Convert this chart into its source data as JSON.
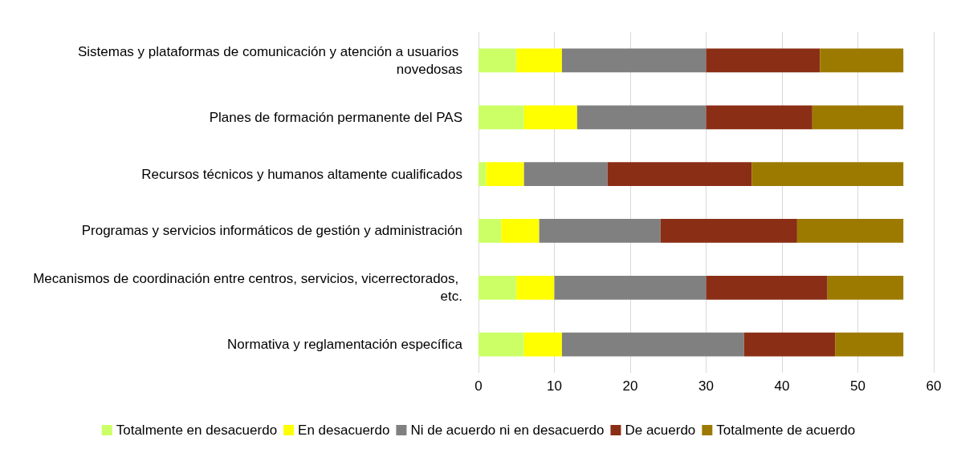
{
  "chart_data": {
    "type": "bar",
    "orientation": "horizontal",
    "stacked": true,
    "categories": [
      "Sistemas y plataformas de comunicación y atención a usuarios novedosas",
      "Planes de formación permanente del PAS",
      "Recursos técnicos y humanos altamente cualificados",
      "Programas y servicios informáticos de gestión y administración",
      "Mecanismos de coordinación entre centros, servicios, vicerrectorados, etc.",
      "Normativa y reglamentación específica"
    ],
    "series": [
      {
        "name": "Totalmente en desacuerdo",
        "color": "#ccff66",
        "values": [
          5,
          6,
          1,
          3,
          5,
          6
        ]
      },
      {
        "name": "En desacuerdo",
        "color": "#ffff00",
        "values": [
          6,
          7,
          5,
          5,
          5,
          5
        ]
      },
      {
        "name": "Ni de acuerdo ni en desacuerdo",
        "color": "#808080",
        "values": [
          19,
          17,
          11,
          16,
          20,
          24
        ]
      },
      {
        "name": "De acuerdo",
        "color": "#8b2e16",
        "values": [
          15,
          14,
          19,
          18,
          16,
          12
        ]
      },
      {
        "name": "Totalmente de acuerdo",
        "color": "#9c7a00",
        "values": [
          11,
          12,
          20,
          14,
          10,
          9
        ]
      }
    ],
    "xlim": [
      0,
      60
    ],
    "xticks": [
      0,
      10,
      20,
      30,
      40,
      50,
      60
    ],
    "grid": "x",
    "legend": "bottom"
  }
}
